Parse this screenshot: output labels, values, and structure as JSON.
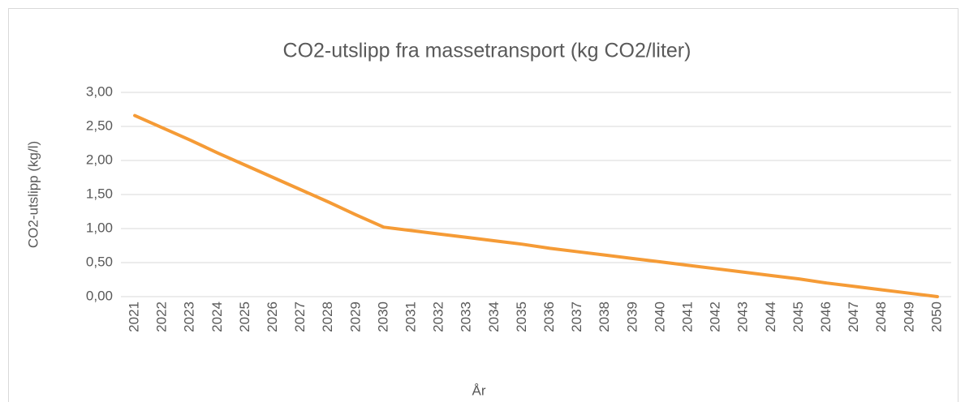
{
  "chart_data": {
    "type": "line",
    "title": "CO2-utslipp fra massetransport (kg CO2/liter)",
    "x_label": "År",
    "y_label": "CO2-utslipp (kg/l)",
    "categories": [
      "2021",
      "2022",
      "2023",
      "2024",
      "2025",
      "2026",
      "2027",
      "2028",
      "2029",
      "2030",
      "2031",
      "2032",
      "2033",
      "2034",
      "2035",
      "2036",
      "2037",
      "2038",
      "2039",
      "2040",
      "2041",
      "2042",
      "2043",
      "2044",
      "2045",
      "2046",
      "2047",
      "2048",
      "2049",
      "2050"
    ],
    "series": [
      {
        "name": "CO2-utslipp",
        "color": "#f59b36",
        "values": [
          2.66,
          2.48,
          2.3,
          2.11,
          1.93,
          1.75,
          1.57,
          1.39,
          1.2,
          1.02,
          0.97,
          0.92,
          0.87,
          0.82,
          0.77,
          0.71,
          0.66,
          0.61,
          0.56,
          0.51,
          0.46,
          0.41,
          0.36,
          0.31,
          0.26,
          0.2,
          0.15,
          0.1,
          0.05,
          0
        ]
      }
    ],
    "ylim": [
      0,
      3
    ],
    "yticks": [
      {
        "value": 0,
        "label": "0,00"
      },
      {
        "value": 0.5,
        "label": "0,50"
      },
      {
        "value": 1,
        "label": "1,00"
      },
      {
        "value": 1.5,
        "label": "1,50"
      },
      {
        "value": 2,
        "label": "2,00"
      },
      {
        "value": 2.5,
        "label": "2,50"
      },
      {
        "value": 3,
        "label": "3,00"
      }
    ],
    "grid": true
  }
}
